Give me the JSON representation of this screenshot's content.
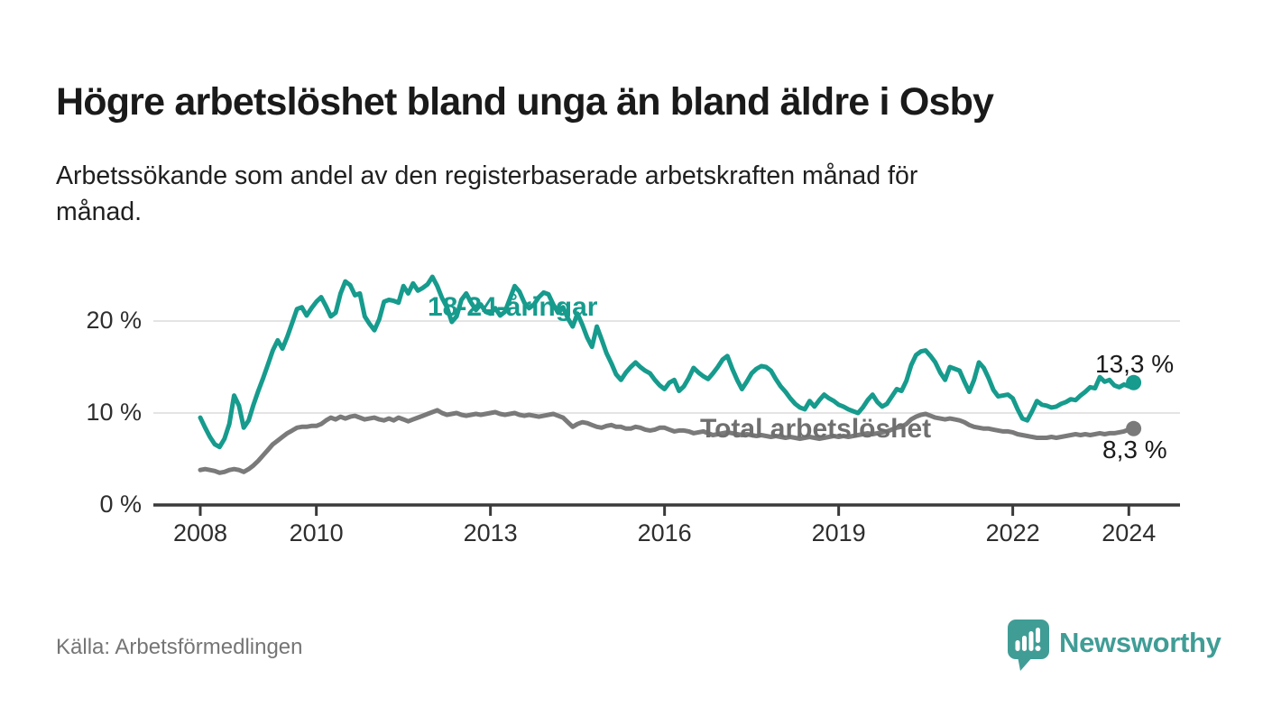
{
  "header": {
    "title": "Högre arbetslöshet bland unga än bland äldre i Osby",
    "subtitle": "Arbetssökande som andel av den registerbaserade arbetskraften månad för månad."
  },
  "footer": {
    "source": "Källa: Arbetsförmedlingen",
    "brand": "Newsworthy"
  },
  "colors": {
    "young_line": "#169b8d",
    "total_line": "#7a7a7a",
    "axis": "#3a3a3a",
    "grid": "#dcdcdc",
    "value_text": "#1a1a1a",
    "muted_text": "#757575",
    "brand_teal": "#409d96"
  },
  "chart_data": {
    "type": "line",
    "title": "Högre arbetslöshet bland unga än bland äldre i Osby",
    "subtitle": "Arbetssökande som andel av den registerbaserade arbetskraften månad för månad.",
    "frequency": "monthly",
    "x_start": {
      "year": 2008,
      "month": 1
    },
    "x_end": {
      "year": 2024,
      "month": 2
    },
    "x_ticks": [
      2008,
      2010,
      2013,
      2016,
      2019,
      2022,
      2024
    ],
    "y_ticks": [
      {
        "value": 0,
        "label": "0 %"
      },
      {
        "value": 10,
        "label": "10 %"
      },
      {
        "value": 20,
        "label": "20 %"
      }
    ],
    "ylim": [
      0,
      26
    ],
    "grid": "horizontal",
    "legend_position": "inline-labels",
    "unit": "%",
    "series": [
      {
        "name": "18-24-åringar",
        "color": "#169b8d",
        "end_label": "13,3 %",
        "end_value": 13.3,
        "values": [
          9.5,
          8.4,
          7.4,
          6.6,
          6.3,
          7.2,
          8.8,
          11.9,
          10.8,
          8.4,
          9.2,
          10.9,
          12.4,
          13.8,
          15.3,
          16.8,
          17.9,
          17.0,
          18.3,
          19.8,
          21.3,
          21.5,
          20.6,
          21.4,
          22.1,
          22.6,
          21.6,
          20.5,
          20.9,
          23.0,
          24.3,
          23.9,
          22.8,
          23.0,
          20.5,
          19.7,
          19.0,
          20.2,
          22.1,
          22.3,
          22.2,
          22.0,
          23.8,
          23.0,
          24.1,
          23.3,
          23.6,
          24.0,
          24.8,
          23.8,
          22.5,
          21.5,
          19.9,
          20.5,
          22.3,
          23.0,
          22.0,
          21.2,
          21.8,
          21.0,
          20.8,
          21.4,
          20.6,
          21.0,
          22.4,
          23.8,
          23.2,
          22.0,
          21.4,
          21.8,
          22.6,
          23.1,
          22.9,
          21.8,
          20.9,
          21.5,
          20.3,
          19.4,
          20.8,
          19.6,
          18.2,
          17.2,
          19.4,
          18.0,
          16.5,
          15.4,
          14.2,
          13.6,
          14.4,
          15.0,
          15.5,
          15.0,
          14.6,
          14.3,
          13.6,
          13.0,
          12.6,
          13.3,
          13.6,
          12.4,
          12.9,
          13.8,
          14.9,
          14.4,
          14.0,
          13.7,
          14.3,
          15.0,
          15.8,
          16.2,
          14.8,
          13.6,
          12.6,
          13.4,
          14.3,
          14.8,
          15.1,
          15.0,
          14.6,
          13.7,
          12.9,
          12.3,
          11.6,
          11.0,
          10.6,
          10.4,
          11.3,
          10.7,
          11.4,
          12.0,
          11.6,
          11.3,
          10.9,
          10.7,
          10.4,
          10.2,
          10.0,
          10.6,
          11.4,
          12.0,
          11.2,
          10.7,
          11.0,
          11.8,
          12.6,
          12.4,
          13.5,
          15.2,
          16.3,
          16.7,
          16.8,
          16.2,
          15.5,
          14.4,
          13.6,
          15.0,
          14.8,
          14.6,
          13.4,
          12.3,
          13.6,
          15.5,
          14.9,
          13.8,
          12.5,
          11.8,
          11.9,
          12.0,
          11.6,
          10.4,
          9.4,
          9.2,
          10.2,
          11.3,
          10.9,
          10.8,
          10.6,
          10.7,
          11.0,
          11.2,
          11.5,
          11.4,
          11.9,
          12.3,
          12.8,
          12.7,
          13.9,
          13.4,
          13.6,
          13.0,
          12.8,
          13.1,
          12.9,
          13.3
        ]
      },
      {
        "name": "Total arbetslöshet",
        "color": "#7a7a7a",
        "end_label": "8,3 %",
        "end_value": 8.3,
        "values": [
          3.8,
          3.9,
          3.8,
          3.7,
          3.5,
          3.6,
          3.8,
          3.9,
          3.8,
          3.6,
          3.9,
          4.3,
          4.8,
          5.4,
          6.0,
          6.6,
          7.0,
          7.4,
          7.8,
          8.1,
          8.4,
          8.5,
          8.5,
          8.6,
          8.6,
          8.8,
          9.2,
          9.5,
          9.3,
          9.6,
          9.4,
          9.6,
          9.7,
          9.5,
          9.3,
          9.4,
          9.5,
          9.3,
          9.2,
          9.4,
          9.2,
          9.5,
          9.3,
          9.1,
          9.3,
          9.5,
          9.7,
          9.9,
          10.1,
          10.3,
          10.0,
          9.8,
          9.9,
          10.0,
          9.8,
          9.7,
          9.8,
          9.9,
          9.8,
          9.9,
          10.0,
          10.1,
          9.9,
          9.8,
          9.9,
          10.0,
          9.8,
          9.7,
          9.8,
          9.7,
          9.6,
          9.7,
          9.8,
          9.9,
          9.7,
          9.5,
          9.0,
          8.5,
          8.8,
          9.0,
          8.9,
          8.7,
          8.5,
          8.4,
          8.6,
          8.7,
          8.5,
          8.5,
          8.3,
          8.3,
          8.5,
          8.4,
          8.2,
          8.1,
          8.2,
          8.4,
          8.4,
          8.2,
          8.0,
          8.1,
          8.1,
          8.0,
          7.8,
          7.9,
          8.0,
          7.8,
          7.6,
          7.7,
          7.8,
          7.9,
          7.8,
          7.7,
          7.6,
          7.7,
          7.6,
          7.5,
          7.6,
          7.5,
          7.4,
          7.5,
          7.4,
          7.3,
          7.4,
          7.3,
          7.2,
          7.3,
          7.4,
          7.3,
          7.2,
          7.3,
          7.4,
          7.5,
          7.4,
          7.5,
          7.4,
          7.5,
          7.6,
          7.7,
          7.8,
          7.7,
          7.8,
          7.9,
          8.0,
          8.2,
          8.4,
          8.5,
          8.8,
          9.3,
          9.6,
          9.8,
          9.9,
          9.7,
          9.5,
          9.4,
          9.3,
          9.4,
          9.3,
          9.2,
          9.0,
          8.7,
          8.5,
          8.4,
          8.3,
          8.3,
          8.2,
          8.1,
          8.0,
          8.0,
          7.9,
          7.7,
          7.6,
          7.5,
          7.4,
          7.3,
          7.3,
          7.3,
          7.4,
          7.3,
          7.4,
          7.5,
          7.6,
          7.7,
          7.6,
          7.7,
          7.6,
          7.7,
          7.8,
          7.7,
          7.8,
          7.8,
          7.9,
          8.0,
          8.2,
          8.3
        ]
      }
    ]
  }
}
